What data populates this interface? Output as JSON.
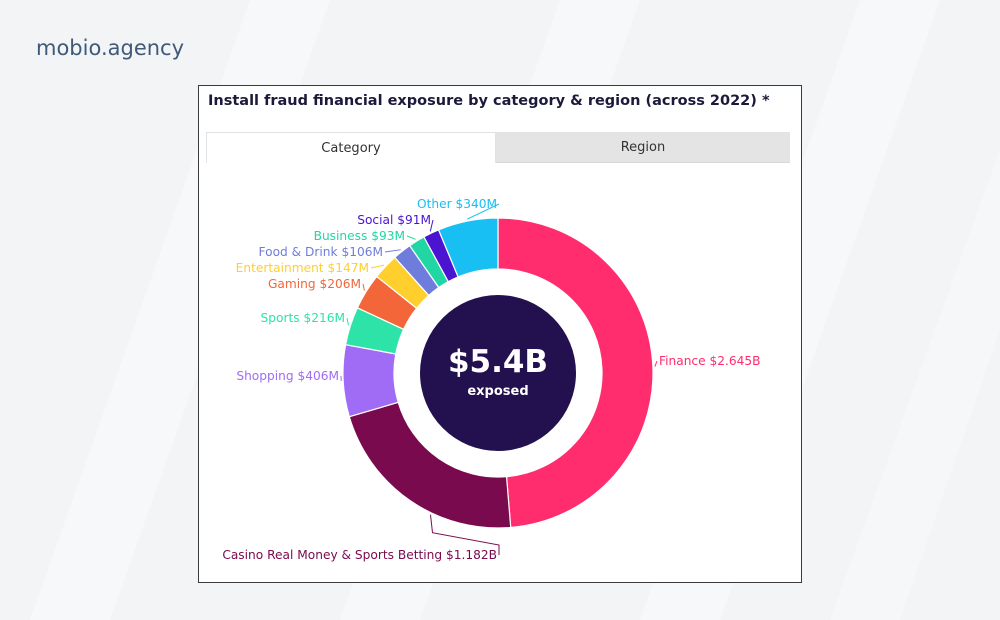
{
  "brand": {
    "name": "mobio.agency"
  },
  "card": {
    "title": "Install fraud financial exposure by category & region (across 2022) *",
    "tabs": [
      {
        "label": "Category",
        "active": true
      },
      {
        "label": "Region",
        "active": false
      }
    ]
  },
  "chart_data": {
    "type": "pie",
    "variant": "donut",
    "center_value": "$5.4B",
    "center_label": "exposed",
    "unit": "$M",
    "slices": [
      {
        "name": "Finance",
        "label": "Finance $2.645B",
        "value": 2645,
        "color": "#ff2d6e"
      },
      {
        "name": "Casino Real Money & Sports Betting",
        "label": "Casino Real Money & Sports Betting $1.182B",
        "value": 1182,
        "color": "#7a0a4e"
      },
      {
        "name": "Shopping",
        "label": "Shopping $406M",
        "value": 406,
        "color": "#a16cf5"
      },
      {
        "name": "Sports",
        "label": "Sports $216M",
        "value": 216,
        "color": "#2ee3a8"
      },
      {
        "name": "Gaming",
        "label": "Gaming $206M",
        "value": 206,
        "color": "#f2663a"
      },
      {
        "name": "Entertainment",
        "label": "Entertainment $147M",
        "value": 147,
        "color": "#ffcf2e"
      },
      {
        "name": "Food & Drink",
        "label": "Food & Drink $106M",
        "value": 106,
        "color": "#6e7ddb"
      },
      {
        "name": "Business",
        "label": "Business $93M",
        "value": 93,
        "color": "#22d6a4"
      },
      {
        "name": "Social",
        "label": "Social $91M",
        "value": 91,
        "color": "#4a14d0"
      },
      {
        "name": "Other",
        "label": "Other $340M",
        "value": 340,
        "color": "#17bff2"
      }
    ],
    "center_color": "#23104f"
  }
}
